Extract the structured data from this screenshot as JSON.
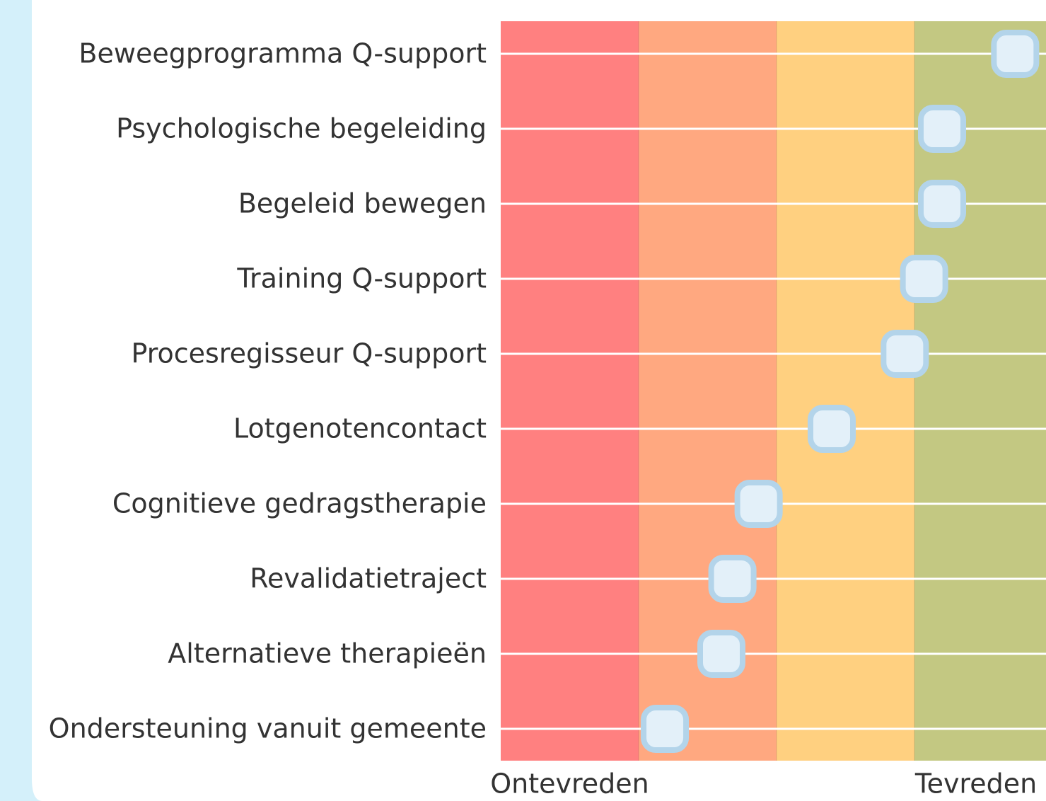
{
  "chart_data": {
    "type": "dot",
    "categories": [
      "Beweegprogramma Q-support",
      "Psychologische begeleiding",
      "Begeleid bewegen",
      "Training Q-support",
      "Procesregisseur Q-support",
      "Lotgenotencontact",
      "Cognitieve gedragstherapie",
      "Revalidatietraject",
      "Alternatieve therapieën",
      "Ondersteuning vanuit gemeente"
    ],
    "values": [
      3.73,
      3.2,
      3.2,
      3.07,
      2.93,
      2.4,
      1.87,
      1.68,
      1.6,
      1.19
    ],
    "xlim": [
      0,
      4
    ],
    "band_colors": [
      "#ff8080",
      "#ffa880",
      "#ffd080",
      "#c3c882"
    ],
    "marker_color": "#e3f0f9",
    "marker_edge_color": "#b3d4ea",
    "scale_labels": [
      "Ontevreden",
      "Tevreden"
    ]
  }
}
